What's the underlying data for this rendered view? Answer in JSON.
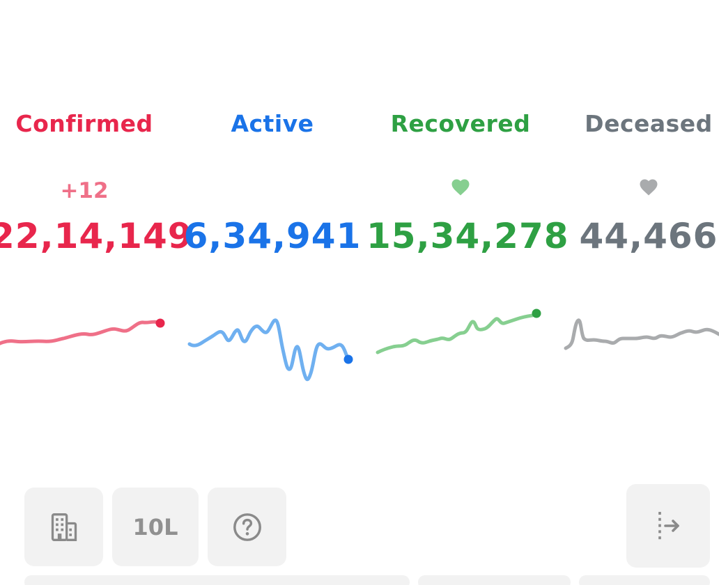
{
  "stats": {
    "confirmed": {
      "title": "Confirmed",
      "delta": "+12",
      "value": "22,14,149",
      "color": "#e8264c",
      "sparkline_color": "#ef7088"
    },
    "active": {
      "title": "Active",
      "value": "6,34,941",
      "color": "#1a73e8",
      "sparkline_color": "#6fb0f0"
    },
    "recovered": {
      "title": "Recovered",
      "value": "15,34,278",
      "color": "#2ea043",
      "sparkline_color": "#86cf90",
      "icon": "heart-icon"
    },
    "deceased": {
      "title": "Deceased",
      "value": "44,466",
      "color": "#6c757d",
      "sparkline_color": "#a9abad",
      "icon": "heart-icon"
    }
  },
  "toolbar": {
    "building_icon": "building-icon",
    "population_label": "10L",
    "help_icon": "help-icon",
    "exit_icon": "exit-arrow-icon"
  }
}
